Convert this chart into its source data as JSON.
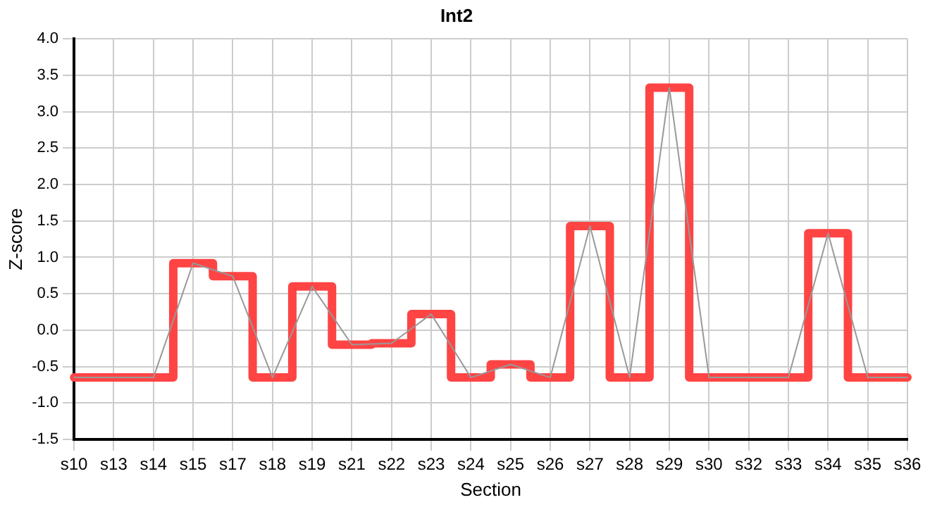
{
  "chart_data": {
    "type": "line",
    "title": "Int2",
    "xlabel": "Section",
    "ylabel": "Z-score",
    "categories": [
      "s10",
      "s13",
      "s14",
      "s15",
      "s17",
      "s18",
      "s19",
      "s21",
      "s22",
      "s23",
      "s24",
      "s25",
      "s26",
      "s27",
      "s28",
      "s29",
      "s30",
      "s32",
      "s33",
      "s34",
      "s35",
      "s36"
    ],
    "series": [
      {
        "type": "line",
        "color": "#999999",
        "values": [
          -0.65,
          -0.65,
          -0.65,
          0.92,
          0.74,
          -0.65,
          0.6,
          -0.2,
          -0.18,
          0.22,
          -0.65,
          -0.47,
          -0.65,
          1.43,
          -0.65,
          3.33,
          -0.65,
          -0.65,
          -0.65,
          1.33,
          -0.65,
          -0.65
        ]
      },
      {
        "type": "step",
        "color": "#ff4444",
        "values": [
          -0.65,
          -0.65,
          -0.65,
          0.92,
          0.74,
          -0.65,
          0.6,
          -0.2,
          -0.18,
          0.22,
          -0.65,
          -0.47,
          -0.65,
          1.43,
          -0.65,
          3.33,
          -0.65,
          -0.65,
          -0.65,
          1.33,
          -0.65,
          -0.65
        ]
      }
    ],
    "ylim": [
      -1.5,
      4.0
    ],
    "yticks": [
      {
        "value": -1.5,
        "label": "-1.5"
      },
      {
        "value": -1,
        "label": "-1.0"
      },
      {
        "value": -0.5,
        "label": "-0.5"
      },
      {
        "value": 0,
        "label": "0.0"
      },
      {
        "value": 0.5,
        "label": "0.5"
      },
      {
        "value": 1,
        "label": "1.0"
      },
      {
        "value": 1.5,
        "label": "1.5"
      },
      {
        "value": 2,
        "label": "2.0"
      },
      {
        "value": 2.5,
        "label": "2.5"
      },
      {
        "value": 3,
        "label": "3.0"
      },
      {
        "value": 3.5,
        "label": "3.5"
      },
      {
        "value": 4,
        "label": "4.0"
      }
    ],
    "grid": true,
    "legend": false,
    "marker": "none"
  }
}
